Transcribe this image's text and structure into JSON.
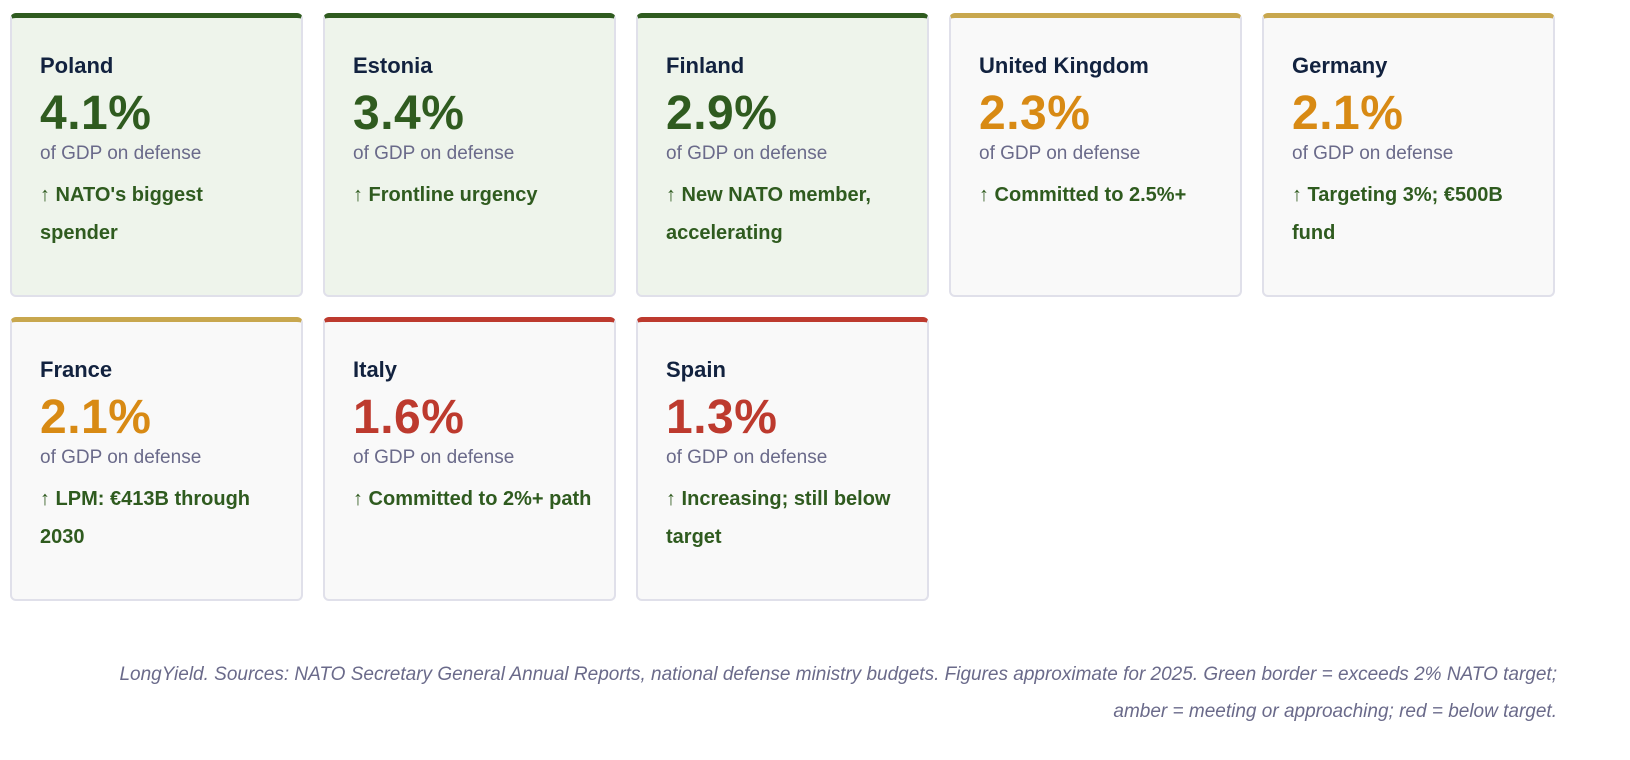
{
  "cards": [
    {
      "country": "Poland",
      "value": "4.1%",
      "sub": "of GDP on defense",
      "note": "↑ NATO's biggest spender",
      "status": "green"
    },
    {
      "country": "Estonia",
      "value": "3.4%",
      "sub": "of GDP on defense",
      "note": "↑ Frontline urgency",
      "status": "green"
    },
    {
      "country": "Finland",
      "value": "2.9%",
      "sub": "of GDP on defense",
      "note": "↑ New NATO member, accelerating",
      "status": "green"
    },
    {
      "country": "United Kingdom",
      "value": "2.3%",
      "sub": "of GDP on defense",
      "note": "↑ Committed to 2.5%+",
      "status": "amber"
    },
    {
      "country": "Germany",
      "value": "2.1%",
      "sub": "of GDP on defense",
      "note": "↑ Targeting 3%; €500B fund",
      "status": "amber"
    },
    {
      "country": "France",
      "value": "2.1%",
      "sub": "of GDP on defense",
      "note": "↑ LPM: €413B through 2030",
      "status": "amber"
    },
    {
      "country": "Italy",
      "value": "1.6%",
      "sub": "of GDP on defense",
      "note": "↑ Committed to 2%+ path",
      "status": "red"
    },
    {
      "country": "Spain",
      "value": "1.3%",
      "sub": "of GDP on defense",
      "note": "↑ Increasing; still below target",
      "status": "red"
    }
  ],
  "colors": {
    "green": "#2f5b1f",
    "amber": "#d88a14",
    "red": "#bd3a2e"
  },
  "footer": "LongYield. Sources: NATO Secretary General Annual Reports, national defense ministry budgets. Figures approximate for 2025. Green border = exceeds 2% NATO target; amber = meeting or approaching; red = below target."
}
